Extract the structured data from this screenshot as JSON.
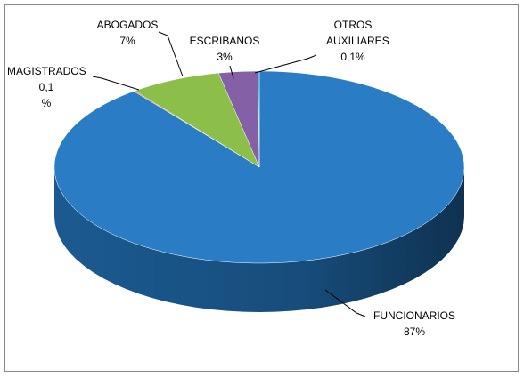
{
  "chart_data": {
    "type": "pie",
    "categories": [
      "FUNCIONARIOS",
      "MAGISTRADOS",
      "ABOGADOS",
      "ESCRIBANOS",
      "OTROS AUXILIARES"
    ],
    "values": [
      87,
      0.1,
      7,
      3,
      0.1
    ],
    "value_labels": [
      "87%",
      "0,1 %",
      "7%",
      "3%",
      "0,1%"
    ],
    "colors": [
      "#2a7cc4",
      "#d63b3b",
      "#8cbf4a",
      "#8460a6",
      "#22aacc"
    ],
    "side_colors": [
      "#1b5a91",
      "#9e2828",
      "#66902f",
      "#5e4279",
      "#177f99"
    ]
  }
}
